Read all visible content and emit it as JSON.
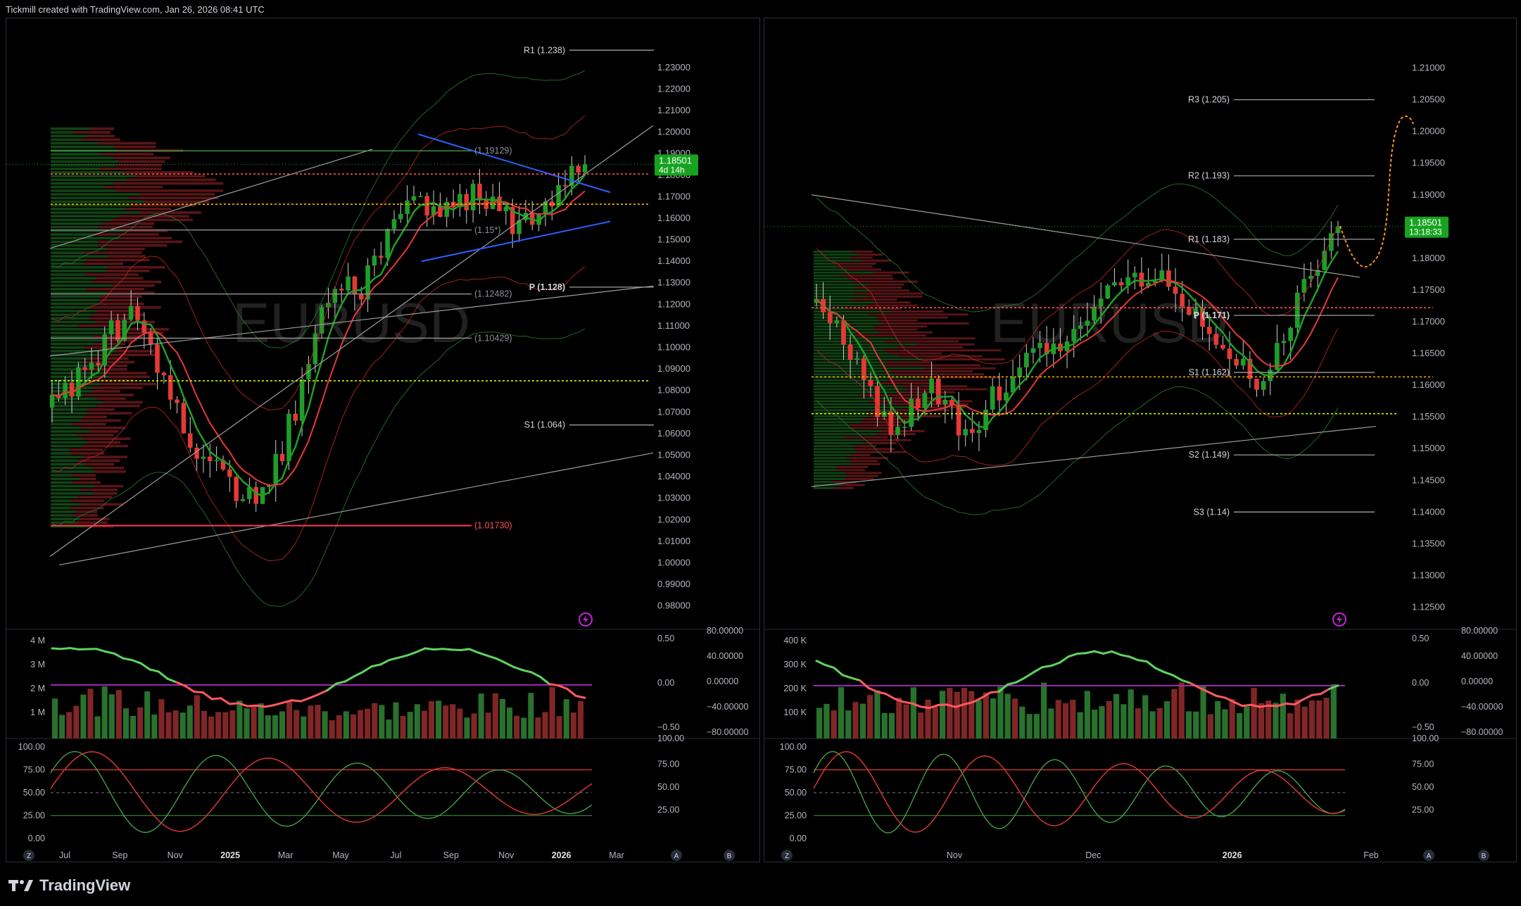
{
  "header": {
    "attribution": "Tickmill created with TradingView.com, Jan 26, 2026 08:41 UTC"
  },
  "footer": {
    "brand": "TradingView"
  },
  "colors": {
    "up": "#1f9d28",
    "down": "#e53935",
    "accent_price": "#17a21f",
    "purple": "#9c27b0",
    "blue": "#2962ff",
    "orange": "#f7931a"
  },
  "panels": [
    {
      "id": "left",
      "watermark": "EURUSD",
      "price_ticks": [
        "1.23000",
        "1.22000",
        "1.21000",
        "1.20000",
        "1.19000",
        "1.18000",
        "1.17000",
        "1.16000",
        "1.15000",
        "1.14000",
        "1.13000",
        "1.12000",
        "1.11000",
        "1.10000",
        "1.09000",
        "1.08000",
        "1.07000",
        "1.06000",
        "1.05000",
        "1.04000",
        "1.03000",
        "1.02000",
        "1.01000",
        "1.00000",
        "0.99000",
        "0.98000"
      ],
      "price_range": [
        0.975,
        1.243
      ],
      "current_price": {
        "value": "1.18501",
        "countdown": "4d 14h",
        "level": 1.18501
      },
      "levels": [
        {
          "label": "R1 (1.238)",
          "value": 1.238,
          "kind": "pivot"
        },
        {
          "label": "(1.19129)",
          "value": 1.19129,
          "kind": "green"
        },
        {
          "label": "(1.15*)",
          "value": 1.1545,
          "kind": "gray"
        },
        {
          "label": "P (1.128)",
          "value": 1.128,
          "kind": "pivot"
        },
        {
          "label": "(1.12482)",
          "value": 1.12482,
          "kind": "gray"
        },
        {
          "label": "(1.10429)",
          "value": 1.10429,
          "kind": "gray"
        },
        {
          "label": "S1 (1.064)",
          "value": 1.064,
          "kind": "pivot"
        },
        {
          "label": "(1.01730)",
          "value": 1.0173,
          "kind": "red"
        }
      ],
      "time_ticks": [
        {
          "label": "Jul",
          "bold": false
        },
        {
          "label": "Sep",
          "bold": false
        },
        {
          "label": "Nov",
          "bold": false
        },
        {
          "label": "2025",
          "bold": true
        },
        {
          "label": "Mar",
          "bold": false
        },
        {
          "label": "May",
          "bold": false
        },
        {
          "label": "Jul",
          "bold": false
        },
        {
          "label": "Sep",
          "bold": false
        },
        {
          "label": "Nov",
          "bold": false
        },
        {
          "label": "2026",
          "bold": true
        },
        {
          "label": "Mar",
          "bold": false
        }
      ],
      "volume_ticks": [
        "4 M",
        "3 M",
        "2 M",
        "1 M"
      ],
      "osc_ticks_a": [
        "0.50",
        "0.00",
        "−0.50"
      ],
      "osc_ticks_b": [
        "80.00000",
        "40.00000",
        "0.00000",
        "−40.00000",
        "−80.00000"
      ],
      "stoch_left_ticks": [
        "100.00",
        "75.00",
        "50.00",
        "25.00",
        "0.00"
      ],
      "stoch_right_ticks": [
        "100.00",
        "75.00",
        "50.00",
        "25.00"
      ],
      "corner_buttons": [
        "Z",
        "A",
        "B"
      ]
    },
    {
      "id": "right",
      "watermark": "EURUSD",
      "price_ticks": [
        "1.21000",
        "1.20500",
        "1.20000",
        "1.19500",
        "1.19000",
        "1.18500",
        "1.18000",
        "1.17500",
        "1.17000",
        "1.16500",
        "1.16000",
        "1.15500",
        "1.15000",
        "1.14500",
        "1.14000",
        "1.13500",
        "1.13000",
        "1.12500"
      ],
      "price_range": [
        1.1235,
        1.2145
      ],
      "current_price": {
        "value": "1.18501",
        "countdown": "13:18:33",
        "level": 1.18501
      },
      "levels": [
        {
          "label": "R3 (1.205)",
          "value": 1.205,
          "kind": "pivot"
        },
        {
          "label": "R2 (1.193)",
          "value": 1.193,
          "kind": "pivot"
        },
        {
          "label": "R1 (1.183)",
          "value": 1.183,
          "kind": "pivot"
        },
        {
          "label": "P (1.171)",
          "value": 1.171,
          "kind": "pivot"
        },
        {
          "label": "S1 (1.162)",
          "value": 1.162,
          "kind": "pivot"
        },
        {
          "label": "S2 (1.149)",
          "value": 1.149,
          "kind": "pivot"
        },
        {
          "label": "S3 (1.14)",
          "value": 1.14,
          "kind": "pivot"
        }
      ],
      "time_ticks": [
        {
          "label": "Nov",
          "bold": false
        },
        {
          "label": "Dec",
          "bold": false
        },
        {
          "label": "2026",
          "bold": true
        },
        {
          "label": "Feb",
          "bold": false
        }
      ],
      "volume_ticks": [
        "400 K",
        "300 K",
        "200 K",
        "100 K"
      ],
      "osc_ticks_a": [
        "0.50",
        "0.00",
        "−0.50"
      ],
      "osc_ticks_b": [
        "80.00000",
        "40.00000",
        "0.00000",
        "−40.00000",
        "−80.00000"
      ],
      "stoch_left_ticks": [
        "100.00",
        "75.00",
        "50.00",
        "25.00",
        "0.00"
      ],
      "stoch_right_ticks": [
        "100.00",
        "75.00",
        "50.00",
        "25.00"
      ],
      "corner_buttons": [
        "Z",
        "A",
        "B"
      ]
    }
  ],
  "chart_data": [
    {
      "type": "line",
      "symbol": "EURUSD",
      "timeframe": "weekly",
      "x": [
        "2024-06",
        "2024-07",
        "2024-08",
        "2024-09",
        "2024-10",
        "2024-11",
        "2024-12",
        "2025-01",
        "2025-02",
        "2025-03",
        "2025-04",
        "2025-05",
        "2025-06",
        "2025-07",
        "2025-08",
        "2025-09",
        "2025-10",
        "2025-11",
        "2025-12",
        "2026-01"
      ],
      "close": [
        1.072,
        1.085,
        1.105,
        1.115,
        1.085,
        1.055,
        1.04,
        1.03,
        1.045,
        1.085,
        1.135,
        1.125,
        1.15,
        1.17,
        1.165,
        1.172,
        1.16,
        1.155,
        1.17,
        1.185
      ],
      "last_price": 1.18501,
      "ylim": [
        0.975,
        1.243
      ]
    },
    {
      "type": "line",
      "symbol": "EURUSD",
      "timeframe": "daily",
      "x": [
        "2025-10-15",
        "2025-10-29",
        "2025-11-05",
        "2025-11-12",
        "2025-11-20",
        "2025-11-26",
        "2025-12-03",
        "2025-12-10",
        "2025-12-17",
        "2025-12-24",
        "2026-01-02",
        "2026-01-09",
        "2026-01-16",
        "2026-01-22",
        "2026-01-26"
      ],
      "close": [
        1.173,
        1.165,
        1.152,
        1.16,
        1.152,
        1.16,
        1.165,
        1.168,
        1.176,
        1.178,
        1.172,
        1.165,
        1.16,
        1.175,
        1.185
      ],
      "last_price": 1.18501,
      "ylim": [
        1.1235,
        1.2145
      ]
    }
  ]
}
